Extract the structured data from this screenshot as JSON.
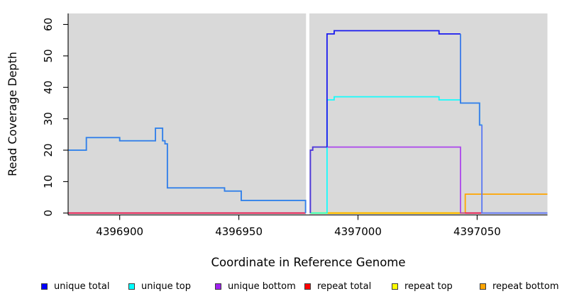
{
  "chart_data": {
    "type": "line",
    "title": "",
    "xlabel": "Coordinate in Reference Genome",
    "ylabel": "Read Coverage Depth",
    "x_range": [
      4396878.5,
      4397079.5
    ],
    "y_range": [
      -0.5,
      63.5
    ],
    "x_ticks": [
      4396900,
      4396950,
      4397000,
      4397050
    ],
    "y_ticks": [
      0,
      10,
      20,
      30,
      40,
      50,
      60
    ],
    "grid": false,
    "plot_background": "#D9D9D9",
    "gap_color": "#FFFFFF",
    "missing_data_gap_x": [
      4396978.2,
      4396979.6
    ],
    "legend_position": "bottom",
    "series": [
      {
        "name": "repeat top",
        "color": "#FFFF00",
        "segments": [
          [
            [
              4396980,
              0
            ],
            [
              4397045,
              0
            ]
          ]
        ]
      },
      {
        "name": "repeat bottom",
        "color": "#FFA500",
        "segments": [
          [
            [
              4396987,
              0
            ],
            [
              4397045,
              0
            ],
            [
              4397045,
              6
            ],
            [
              4397079.5,
              6
            ]
          ]
        ]
      },
      {
        "name": "unique bottom",
        "color": "#A020F0",
        "segments": [
          [
            [
              4396878.5,
              0
            ],
            [
              4396978,
              0
            ]
          ],
          [
            [
              4396980,
              0
            ],
            [
              4396980,
              20
            ],
            [
              4396981,
              20
            ],
            [
              4396981,
              21
            ],
            [
              4397043,
              21
            ],
            [
              4397043,
              0
            ],
            [
              4397079.5,
              0
            ]
          ]
        ]
      },
      {
        "name": "repeat total",
        "color": "#FF0000",
        "segments": [
          [
            [
              4396878.5,
              0
            ],
            [
              4396978,
              0
            ]
          ],
          [
            [
              4397045,
              0
            ],
            [
              4397052,
              0
            ]
          ]
        ]
      },
      {
        "name": "unique top",
        "color": "#00FFFF",
        "segments": [
          [
            [
              4396878.5,
              20
            ],
            [
              4396886,
              20
            ],
            [
              4396886,
              24
            ],
            [
              4396900,
              24
            ],
            [
              4396900,
              23
            ],
            [
              4396915,
              23
            ],
            [
              4396915,
              27
            ],
            [
              4396918,
              27
            ],
            [
              4396918,
              23
            ],
            [
              4396919,
              23
            ],
            [
              4396919,
              22
            ],
            [
              4396920,
              22
            ],
            [
              4396920,
              8
            ],
            [
              4396944,
              8
            ],
            [
              4396944,
              7
            ],
            [
              4396951,
              7
            ],
            [
              4396951,
              4
            ],
            [
              4396978,
              4
            ],
            [
              4396978,
              0
            ]
          ],
          [
            [
              4396980,
              0
            ],
            [
              4396987,
              0
            ],
            [
              4396987,
              36
            ],
            [
              4396990,
              36
            ],
            [
              4396990,
              37
            ],
            [
              4397034,
              37
            ],
            [
              4397034,
              36
            ],
            [
              4397043,
              36
            ],
            [
              4397043,
              35
            ],
            [
              4397051,
              35
            ],
            [
              4397051,
              28
            ],
            [
              4397052,
              28
            ],
            [
              4397052,
              0
            ],
            [
              4397079.5,
              0
            ]
          ]
        ]
      },
      {
        "name": "unique total",
        "color": "#0000FF",
        "segments": [
          [
            [
              4396878.5,
              20
            ],
            [
              4396886,
              20
            ],
            [
              4396886,
              24
            ],
            [
              4396900,
              24
            ],
            [
              4396900,
              23
            ],
            [
              4396915,
              23
            ],
            [
              4396915,
              27
            ],
            [
              4396918,
              27
            ],
            [
              4396918,
              23
            ],
            [
              4396919,
              23
            ],
            [
              4396919,
              22
            ],
            [
              4396920,
              22
            ],
            [
              4396920,
              8
            ],
            [
              4396944,
              8
            ],
            [
              4396944,
              7
            ],
            [
              4396951,
              7
            ],
            [
              4396951,
              4
            ],
            [
              4396978,
              4
            ],
            [
              4396978,
              0
            ]
          ],
          [
            [
              4396980,
              0
            ],
            [
              4396980,
              20
            ],
            [
              4396981,
              20
            ],
            [
              4396981,
              21
            ],
            [
              4396987,
              21
            ],
            [
              4396987,
              57
            ],
            [
              4396990,
              57
            ],
            [
              4396990,
              58
            ],
            [
              4397034,
              58
            ],
            [
              4397034,
              57
            ],
            [
              4397043,
              57
            ],
            [
              4397043,
              35
            ],
            [
              4397051,
              35
            ],
            [
              4397051,
              28
            ],
            [
              4397052,
              28
            ],
            [
              4397052,
              0
            ],
            [
              4397079.5,
              0
            ]
          ]
        ]
      }
    ]
  },
  "legend": {
    "items": [
      {
        "label": "unique total",
        "color": "#0000FF"
      },
      {
        "label": "unique top",
        "color": "#00FFFF"
      },
      {
        "label": "unique bottom",
        "color": "#A020F0"
      },
      {
        "label": "repeat total",
        "color": "#FF0000"
      },
      {
        "label": "repeat top",
        "color": "#FFFF00"
      },
      {
        "label": "repeat bottom",
        "color": "#FFA500"
      }
    ]
  }
}
